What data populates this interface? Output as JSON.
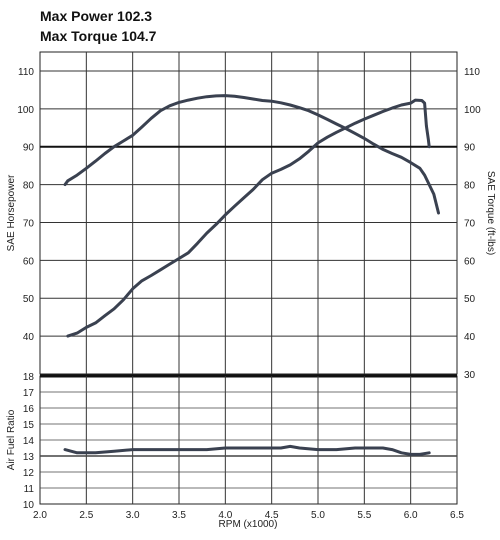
{
  "header": {
    "max_power": "Max Power 102.3",
    "max_torque": "Max Torque 104.7"
  },
  "chart_data": [
    {
      "type": "line",
      "xlabel": "RPM (x1000)",
      "ylabel_left": "SAE Horsepower",
      "ylabel_right": "SAE Torque (ft-lbs)",
      "xlim": [
        2.0,
        6.5
      ],
      "ylim_left": [
        30,
        115
      ],
      "ylim_right": [
        30,
        115
      ],
      "x_ticks": [
        "2.0",
        "2.5",
        "3.0",
        "3.5",
        "4.0",
        "4.5",
        "5.0",
        "5.5",
        "6.0",
        "6.5"
      ],
      "y_ticks_left": [
        "40",
        "50",
        "60",
        "70",
        "80",
        "90",
        "100",
        "110"
      ],
      "y_ticks_right": [
        "30",
        "40",
        "50",
        "60",
        "70",
        "80",
        "90",
        "100",
        "110"
      ],
      "grid": true,
      "series": [
        {
          "color": "#3a4150",
          "points": [
            [
              2.3,
              40.0
            ],
            [
              2.4,
              40.8
            ],
            [
              2.5,
              42.3
            ],
            [
              2.6,
              43.5
            ],
            [
              2.7,
              45.4
            ],
            [
              2.8,
              47.2
            ],
            [
              2.9,
              49.6
            ],
            [
              3.0,
              52.5
            ],
            [
              3.1,
              54.6
            ],
            [
              3.2,
              56.0
            ],
            [
              3.3,
              57.5
            ],
            [
              3.4,
              59.0
            ],
            [
              3.5,
              60.5
            ],
            [
              3.6,
              62.0
            ],
            [
              3.7,
              64.5
            ],
            [
              3.8,
              67.2
            ],
            [
              3.9,
              69.5
            ],
            [
              4.0,
              72.0
            ],
            [
              4.1,
              74.3
            ],
            [
              4.2,
              76.5
            ],
            [
              4.3,
              78.7
            ],
            [
              4.4,
              81.3
            ],
            [
              4.5,
              83.0
            ],
            [
              4.6,
              84.0
            ],
            [
              4.7,
              85.2
            ],
            [
              4.8,
              86.8
            ],
            [
              4.9,
              88.8
            ],
            [
              5.0,
              91.0
            ],
            [
              5.1,
              92.5
            ],
            [
              5.2,
              93.8
            ],
            [
              5.3,
              95.0
            ],
            [
              5.4,
              96.2
            ],
            [
              5.5,
              97.3
            ],
            [
              5.6,
              98.3
            ],
            [
              5.7,
              99.3
            ],
            [
              5.8,
              100.2
            ],
            [
              5.9,
              101.0
            ],
            [
              6.0,
              101.5
            ],
            [
              6.05,
              102.3
            ],
            [
              6.12,
              102.2
            ],
            [
              6.15,
              101.5
            ],
            [
              6.17,
              95.5
            ],
            [
              6.19,
              92.0
            ],
            [
              6.2,
              90.0
            ]
          ]
        },
        {
          "color": "#3a4150",
          "points": [
            [
              2.27,
              80.0
            ],
            [
              2.3,
              81.0
            ],
            [
              2.4,
              82.5
            ],
            [
              2.5,
              84.3
            ],
            [
              2.6,
              86.2
            ],
            [
              2.7,
              88.2
            ],
            [
              2.8,
              90.0
            ],
            [
              2.9,
              91.5
            ],
            [
              3.0,
              93.0
            ],
            [
              3.1,
              95.2
            ],
            [
              3.2,
              97.5
            ],
            [
              3.3,
              99.5
            ],
            [
              3.4,
              100.8
            ],
            [
              3.5,
              101.7
            ],
            [
              3.6,
              102.3
            ],
            [
              3.7,
              102.8
            ],
            [
              3.8,
              103.2
            ],
            [
              3.9,
              103.4
            ],
            [
              4.0,
              103.5
            ],
            [
              4.1,
              103.3
            ],
            [
              4.2,
              103.0
            ],
            [
              4.3,
              102.6
            ],
            [
              4.4,
              102.2
            ],
            [
              4.5,
              102.0
            ],
            [
              4.6,
              101.6
            ],
            [
              4.7,
              101.0
            ],
            [
              4.8,
              100.3
            ],
            [
              4.9,
              99.5
            ],
            [
              5.0,
              98.4
            ],
            [
              5.1,
              97.2
            ],
            [
              5.2,
              96.0
            ],
            [
              5.3,
              94.8
            ],
            [
              5.4,
              93.5
            ],
            [
              5.5,
              92.2
            ],
            [
              5.6,
              90.7
            ],
            [
              5.7,
              89.3
            ],
            [
              5.8,
              88.2
            ],
            [
              5.9,
              87.2
            ],
            [
              6.0,
              85.8
            ],
            [
              6.1,
              84.3
            ],
            [
              6.15,
              82.5
            ],
            [
              6.2,
              80.0
            ],
            [
              6.25,
              77.5
            ],
            [
              6.28,
              74.5
            ],
            [
              6.3,
              72.5
            ]
          ]
        }
      ]
    },
    {
      "type": "line",
      "ylabel": "Air Fuel Ratio",
      "xlim": [
        2.0,
        6.5
      ],
      "ylim": [
        10,
        18
      ],
      "y_ticks": [
        "10",
        "11",
        "12",
        "13",
        "14",
        "15",
        "16",
        "17",
        "18"
      ],
      "grid": true,
      "series": [
        {
          "color": "#3a4150",
          "points": [
            [
              2.27,
              13.4
            ],
            [
              2.4,
              13.2
            ],
            [
              2.6,
              13.2
            ],
            [
              2.8,
              13.3
            ],
            [
              3.0,
              13.4
            ],
            [
              3.2,
              13.4
            ],
            [
              3.4,
              13.4
            ],
            [
              3.6,
              13.4
            ],
            [
              3.8,
              13.4
            ],
            [
              4.0,
              13.5
            ],
            [
              4.2,
              13.5
            ],
            [
              4.4,
              13.5
            ],
            [
              4.6,
              13.5
            ],
            [
              4.7,
              13.6
            ],
            [
              4.8,
              13.5
            ],
            [
              5.0,
              13.4
            ],
            [
              5.2,
              13.4
            ],
            [
              5.4,
              13.5
            ],
            [
              5.6,
              13.5
            ],
            [
              5.7,
              13.5
            ],
            [
              5.8,
              13.4
            ],
            [
              5.9,
              13.2
            ],
            [
              6.0,
              13.1
            ],
            [
              6.1,
              13.1
            ],
            [
              6.2,
              13.2
            ]
          ]
        }
      ]
    }
  ]
}
